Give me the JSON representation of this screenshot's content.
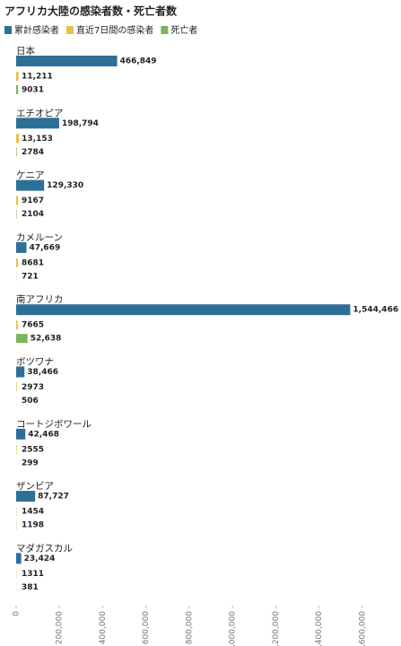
{
  "chart_data": {
    "type": "hbar",
    "title": "アフリカ大陸の感染者数・死亡者数",
    "categories": [
      "日本",
      "エチオピア",
      "ケニア",
      "カメルーン",
      "南アフリカ",
      "ボツワナ",
      "コートジボワール",
      "ザンビア",
      "マダガスカル"
    ],
    "series": [
      {
        "name": "累計感染者",
        "color": "#2e6f97",
        "values": [
          466849,
          198794,
          129330,
          47669,
          1544466,
          38466,
          42468,
          87727,
          23424
        ],
        "value_labels": [
          "466,849",
          "198,794",
          "129,330",
          "47,669",
          "1,544,466",
          "38,466",
          "42,468",
          "87,727",
          "23,424"
        ]
      },
      {
        "name": "直近7日間の感染者",
        "color": "#e6c14c",
        "values": [
          11211,
          13153,
          9167,
          8681,
          7665,
          2973,
          2555,
          1454,
          1311
        ],
        "value_labels": [
          "11,211",
          "13,153",
          "9167",
          "8681",
          "7665",
          "2973",
          "2555",
          "1454",
          "1311"
        ]
      },
      {
        "name": "死亡者",
        "color": "#7ab55c",
        "values": [
          9031,
          2784,
          2104,
          721,
          52638,
          506,
          299,
          1198,
          381
        ],
        "value_labels": [
          "9031",
          "2784",
          "2104",
          "721",
          "52,638",
          "506",
          "299",
          "1198",
          "381"
        ]
      }
    ],
    "xlim": [
      0,
      1750000
    ],
    "xticks": [
      0,
      {
        "value": 200000,
        "label": "200,000"
      },
      {
        "value": 400000,
        "label": "400,000"
      },
      {
        "value": 600000,
        "label": "600,000"
      },
      {
        "value": 800000,
        "label": "800,000"
      },
      {
        "value": 1000000,
        "label": "1,000,000"
      },
      {
        "value": 1200000,
        "label": "1,200,000"
      },
      {
        "value": 1400000,
        "label": "1,400,000"
      },
      {
        "value": 1600000,
        "label": "1,600,000"
      }
    ],
    "grid": false
  }
}
